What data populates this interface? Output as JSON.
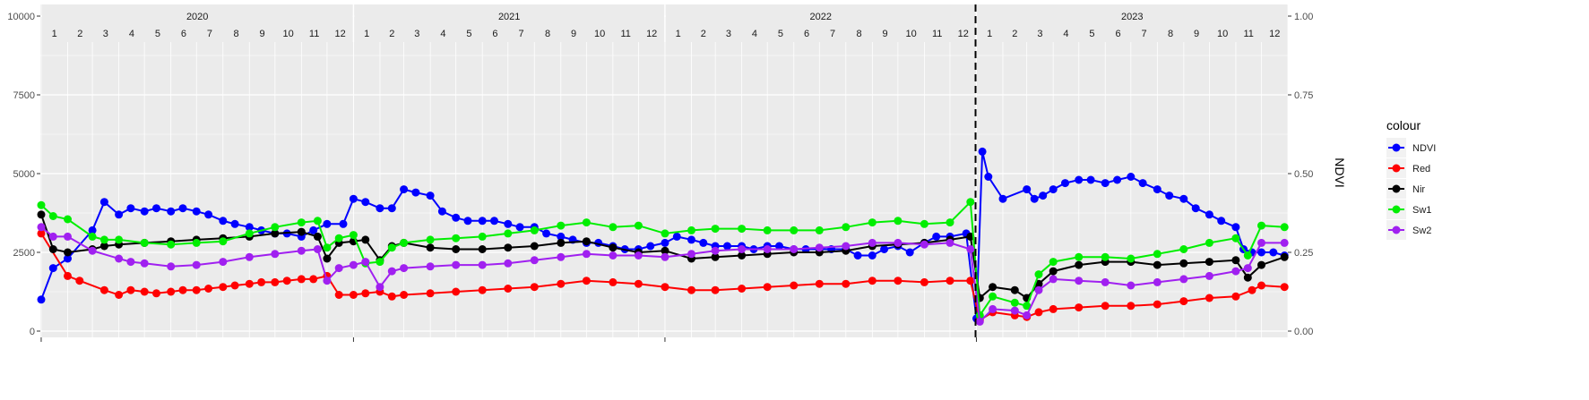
{
  "chart_data": {
    "type": "line",
    "x_unit": "date",
    "ylabel_right": "NDVI",
    "ylim_left": [
      0,
      10000
    ],
    "ylim_right": [
      0,
      1
    ],
    "left_ticks": [
      "0",
      "2500",
      "5000",
      "7500",
      "10000"
    ],
    "right_ticks": [
      "0.00",
      "0.25",
      "0.50",
      "0.75",
      "1.00"
    ],
    "years": [
      "2020",
      "2021",
      "2022",
      "2023"
    ],
    "months": [
      "1",
      "2",
      "3",
      "4",
      "5",
      "6",
      "7",
      "8",
      "9",
      "10",
      "11",
      "12"
    ],
    "vline_date": "2022-12-31",
    "grid": true,
    "legend_title": "colour",
    "legend_position": "right",
    "series": [
      {
        "name": "NDVI",
        "color": "#0000ff",
        "axis": "right",
        "dates": [
          "2020-01-01",
          "2020-01-15",
          "2020-02-01",
          "2020-03-01",
          "2020-03-15",
          "2020-04-01",
          "2020-04-15",
          "2020-05-01",
          "2020-05-15",
          "2020-06-01",
          "2020-06-15",
          "2020-07-01",
          "2020-07-15",
          "2020-08-01",
          "2020-08-15",
          "2020-09-01",
          "2020-09-15",
          "2020-10-01",
          "2020-10-15",
          "2020-11-01",
          "2020-11-15",
          "2020-12-01",
          "2020-12-20",
          "2021-01-01",
          "2021-01-15",
          "2021-02-01",
          "2021-02-15",
          "2021-03-01",
          "2021-03-15",
          "2021-04-01",
          "2021-04-15",
          "2021-05-01",
          "2021-05-15",
          "2021-06-01",
          "2021-06-15",
          "2021-07-01",
          "2021-07-15",
          "2021-08-01",
          "2021-08-15",
          "2021-09-01",
          "2021-09-15",
          "2021-10-01",
          "2021-10-15",
          "2021-11-01",
          "2021-11-15",
          "2021-12-01",
          "2021-12-15",
          "2022-01-01",
          "2022-01-15",
          "2022-02-01",
          "2022-02-15",
          "2022-03-01",
          "2022-03-15",
          "2022-04-01",
          "2022-04-15",
          "2022-05-01",
          "2022-05-15",
          "2022-06-01",
          "2022-06-15",
          "2022-07-01",
          "2022-07-15",
          "2022-08-01",
          "2022-08-15",
          "2022-09-01",
          "2022-09-15",
          "2022-10-01",
          "2022-10-15",
          "2022-11-01",
          "2022-11-15",
          "2022-12-01",
          "2022-12-20",
          "2023-01-01",
          "2023-01-08",
          "2023-01-15",
          "2023-02-01",
          "2023-03-01",
          "2023-03-10",
          "2023-03-20",
          "2023-04-01",
          "2023-04-15",
          "2023-05-01",
          "2023-05-15",
          "2023-06-01",
          "2023-06-15",
          "2023-07-01",
          "2023-07-15",
          "2023-08-01",
          "2023-08-15",
          "2023-09-01",
          "2023-09-15",
          "2023-10-01",
          "2023-10-15",
          "2023-11-01",
          "2023-11-10",
          "2023-11-20",
          "2023-12-01",
          "2023-12-15",
          "2023-12-28"
        ],
        "values": [
          0.1,
          0.2,
          0.23,
          0.32,
          0.41,
          0.37,
          0.39,
          0.38,
          0.39,
          0.38,
          0.39,
          0.38,
          0.37,
          0.35,
          0.34,
          0.33,
          0.32,
          0.31,
          0.31,
          0.3,
          0.32,
          0.34,
          0.34,
          0.42,
          0.41,
          0.39,
          0.39,
          0.45,
          0.44,
          0.43,
          0.38,
          0.36,
          0.35,
          0.35,
          0.35,
          0.34,
          0.33,
          0.33,
          0.31,
          0.3,
          0.29,
          0.28,
          0.28,
          0.27,
          0.26,
          0.26,
          0.27,
          0.28,
          0.3,
          0.29,
          0.28,
          0.27,
          0.27,
          0.27,
          0.26,
          0.27,
          0.27,
          0.26,
          0.26,
          0.26,
          0.26,
          0.26,
          0.24,
          0.24,
          0.26,
          0.27,
          0.25,
          0.28,
          0.3,
          0.3,
          0.31,
          0.04,
          0.57,
          0.49,
          0.42,
          0.45,
          0.42,
          0.43,
          0.45,
          0.47,
          0.48,
          0.48,
          0.47,
          0.48,
          0.49,
          0.47,
          0.45,
          0.43,
          0.42,
          0.39,
          0.37,
          0.35,
          0.33,
          0.26,
          0.25,
          0.25,
          0.25,
          0.24
        ]
      },
      {
        "name": "Red",
        "color": "#ff0000",
        "axis": "left",
        "dates": [
          "2020-01-01",
          "2020-02-01",
          "2020-02-15",
          "2020-03-15",
          "2020-04-01",
          "2020-04-15",
          "2020-05-01",
          "2020-05-15",
          "2020-06-01",
          "2020-06-15",
          "2020-07-01",
          "2020-07-15",
          "2020-08-01",
          "2020-08-15",
          "2020-09-01",
          "2020-09-15",
          "2020-10-01",
          "2020-10-15",
          "2020-11-01",
          "2020-11-15",
          "2020-12-01",
          "2020-12-15",
          "2021-01-01",
          "2021-01-15",
          "2021-02-01",
          "2021-02-15",
          "2021-03-01",
          "2021-04-01",
          "2021-05-01",
          "2021-06-01",
          "2021-07-01",
          "2021-08-01",
          "2021-09-01",
          "2021-10-01",
          "2021-11-01",
          "2021-12-01",
          "2022-01-01",
          "2022-02-01",
          "2022-03-01",
          "2022-04-01",
          "2022-05-01",
          "2022-06-01",
          "2022-07-01",
          "2022-08-01",
          "2022-09-01",
          "2022-10-01",
          "2022-11-01",
          "2022-12-01",
          "2022-12-25",
          "2023-01-05",
          "2023-01-20",
          "2023-02-15",
          "2023-03-01",
          "2023-03-15",
          "2023-04-01",
          "2023-05-01",
          "2023-06-01",
          "2023-07-01",
          "2023-08-01",
          "2023-09-01",
          "2023-10-01",
          "2023-11-01",
          "2023-11-20",
          "2023-12-01",
          "2023-12-28"
        ],
        "values": [
          3100,
          1750,
          1600,
          1300,
          1150,
          1300,
          1250,
          1200,
          1250,
          1300,
          1300,
          1350,
          1400,
          1450,
          1500,
          1550,
          1550,
          1600,
          1650,
          1650,
          1750,
          1150,
          1150,
          1200,
          1250,
          1100,
          1150,
          1200,
          1250,
          1300,
          1350,
          1400,
          1500,
          1600,
          1550,
          1500,
          1400,
          1300,
          1300,
          1350,
          1400,
          1450,
          1500,
          1500,
          1600,
          1600,
          1550,
          1600,
          1600,
          350,
          600,
          500,
          450,
          600,
          700,
          750,
          800,
          800,
          850,
          950,
          1050,
          1100,
          1300,
          1450,
          1400
        ]
      },
      {
        "name": "Nir",
        "color": "#000000",
        "axis": "left",
        "dates": [
          "2020-01-01",
          "2020-01-15",
          "2020-02-01",
          "2020-03-01",
          "2020-03-15",
          "2020-04-01",
          "2020-05-01",
          "2020-06-01",
          "2020-07-01",
          "2020-08-01",
          "2020-09-01",
          "2020-10-01",
          "2020-11-01",
          "2020-11-20",
          "2020-12-01",
          "2020-12-15",
          "2021-01-01",
          "2021-01-15",
          "2021-02-01",
          "2021-02-15",
          "2021-03-01",
          "2021-04-01",
          "2021-05-01",
          "2021-06-01",
          "2021-07-01",
          "2021-08-01",
          "2021-09-01",
          "2021-10-01",
          "2021-11-01",
          "2021-12-01",
          "2022-01-01",
          "2022-02-01",
          "2022-03-01",
          "2022-04-01",
          "2022-05-01",
          "2022-06-01",
          "2022-07-01",
          "2022-08-01",
          "2022-09-01",
          "2022-10-01",
          "2022-11-01",
          "2022-12-01",
          "2022-12-25",
          "2023-01-05",
          "2023-01-20",
          "2023-02-15",
          "2023-03-01",
          "2023-03-15",
          "2023-04-01",
          "2023-05-01",
          "2023-06-01",
          "2023-07-01",
          "2023-08-01",
          "2023-09-01",
          "2023-10-01",
          "2023-11-01",
          "2023-11-15",
          "2023-12-01",
          "2023-12-28"
        ],
        "values": [
          3700,
          2600,
          2500,
          2600,
          2700,
          2750,
          2800,
          2850,
          2900,
          2950,
          3000,
          3100,
          3150,
          3000,
          2300,
          2800,
          2850,
          2900,
          2250,
          2700,
          2800,
          2650,
          2600,
          2600,
          2650,
          2700,
          2800,
          2850,
          2650,
          2500,
          2550,
          2300,
          2350,
          2400,
          2450,
          2500,
          2500,
          2550,
          2700,
          2750,
          2800,
          2900,
          3000,
          1050,
          1400,
          1300,
          1050,
          1500,
          1900,
          2100,
          2200,
          2200,
          2100,
          2150,
          2200,
          2250,
          1700,
          2100,
          2350
        ]
      },
      {
        "name": "Sw1",
        "color": "#00ee00",
        "axis": "left",
        "dates": [
          "2020-01-01",
          "2020-01-15",
          "2020-02-01",
          "2020-03-01",
          "2020-03-15",
          "2020-04-01",
          "2020-05-01",
          "2020-06-01",
          "2020-07-01",
          "2020-08-01",
          "2020-09-01",
          "2020-10-01",
          "2020-11-01",
          "2020-11-20",
          "2020-12-01",
          "2020-12-15",
          "2021-01-01",
          "2021-01-15",
          "2021-02-01",
          "2021-02-15",
          "2021-03-01",
          "2021-04-01",
          "2021-05-01",
          "2021-06-01",
          "2021-07-01",
          "2021-08-01",
          "2021-09-01",
          "2021-10-01",
          "2021-11-01",
          "2021-12-01",
          "2022-01-01",
          "2022-02-01",
          "2022-03-01",
          "2022-04-01",
          "2022-05-01",
          "2022-06-01",
          "2022-07-01",
          "2022-08-01",
          "2022-09-01",
          "2022-10-01",
          "2022-11-01",
          "2022-12-01",
          "2022-12-25",
          "2023-01-05",
          "2023-01-20",
          "2023-02-15",
          "2023-03-01",
          "2023-03-15",
          "2023-04-01",
          "2023-05-01",
          "2023-06-01",
          "2023-07-01",
          "2023-08-01",
          "2023-09-01",
          "2023-10-01",
          "2023-11-01",
          "2023-11-15",
          "2023-12-01",
          "2023-12-28"
        ],
        "values": [
          4000,
          3650,
          3550,
          3000,
          2900,
          2900,
          2800,
          2750,
          2800,
          2850,
          3100,
          3300,
          3450,
          3500,
          2650,
          2950,
          3050,
          2150,
          2200,
          2650,
          2800,
          2900,
          2950,
          3000,
          3100,
          3200,
          3350,
          3450,
          3300,
          3350,
          3100,
          3200,
          3250,
          3250,
          3200,
          3200,
          3200,
          3300,
          3450,
          3500,
          3400,
          3450,
          4100,
          500,
          1100,
          900,
          800,
          1800,
          2200,
          2350,
          2350,
          2300,
          2450,
          2600,
          2800,
          2950,
          2400,
          3350,
          3300
        ]
      },
      {
        "name": "Sw2",
        "color": "#a020f0",
        "axis": "left",
        "dates": [
          "2020-01-01",
          "2020-01-15",
          "2020-02-01",
          "2020-03-01",
          "2020-04-01",
          "2020-04-15",
          "2020-05-01",
          "2020-06-01",
          "2020-07-01",
          "2020-08-01",
          "2020-09-01",
          "2020-10-01",
          "2020-11-01",
          "2020-11-20",
          "2020-12-01",
          "2020-12-15",
          "2021-01-01",
          "2021-01-15",
          "2021-02-01",
          "2021-02-15",
          "2021-03-01",
          "2021-04-01",
          "2021-05-01",
          "2021-06-01",
          "2021-07-01",
          "2021-08-01",
          "2021-09-01",
          "2021-10-01",
          "2021-11-01",
          "2021-12-01",
          "2022-01-01",
          "2022-02-01",
          "2022-03-01",
          "2022-04-01",
          "2022-05-01",
          "2022-06-01",
          "2022-07-01",
          "2022-08-01",
          "2022-09-01",
          "2022-10-01",
          "2022-11-01",
          "2022-12-01",
          "2022-12-25",
          "2023-01-05",
          "2023-01-20",
          "2023-02-15",
          "2023-03-01",
          "2023-03-15",
          "2023-04-01",
          "2023-05-01",
          "2023-06-01",
          "2023-07-01",
          "2023-08-01",
          "2023-09-01",
          "2023-10-01",
          "2023-11-01",
          "2023-11-15",
          "2023-12-01",
          "2023-12-28"
        ],
        "values": [
          3300,
          3000,
          3000,
          2550,
          2300,
          2200,
          2150,
          2050,
          2100,
          2200,
          2350,
          2450,
          2550,
          2600,
          1600,
          2000,
          2100,
          2200,
          1400,
          1900,
          2000,
          2050,
          2100,
          2100,
          2150,
          2250,
          2350,
          2450,
          2400,
          2400,
          2350,
          2450,
          2550,
          2600,
          2600,
          2600,
          2650,
          2700,
          2800,
          2800,
          2750,
          2800,
          2600,
          300,
          700,
          650,
          500,
          1300,
          1650,
          1600,
          1550,
          1450,
          1550,
          1650,
          1750,
          1900,
          2000,
          2800,
          2800
        ]
      }
    ]
  }
}
